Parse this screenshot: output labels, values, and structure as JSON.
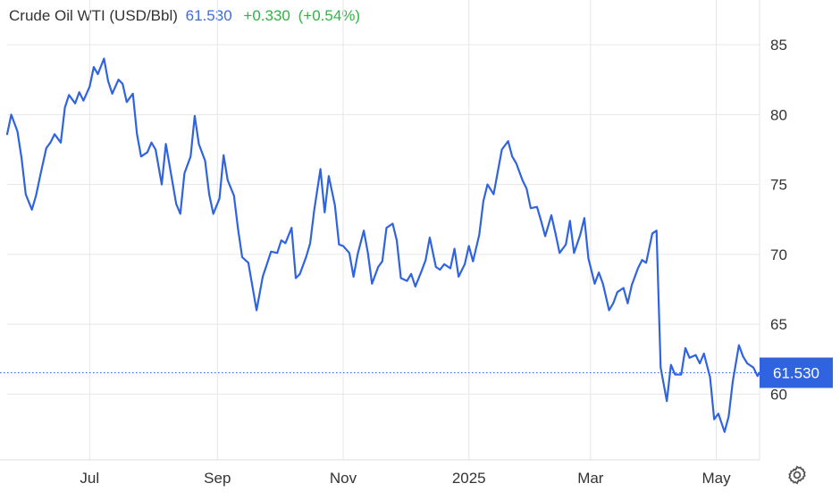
{
  "header": {
    "name": "Crude Oil WTI (USD/Bbl)",
    "price": "61.530",
    "change": "+0.330",
    "change_pct": "(+0.54%)"
  },
  "last_value_label": "61.530",
  "colors": {
    "line": "#2f63e0",
    "price_text": "#3d6be0",
    "change_positive": "#2fb344",
    "grid": "#e6e6e6",
    "axis_text": "#333333",
    "last_value_bg": "#2f63e0"
  },
  "icons": {
    "settings": "gear-icon"
  },
  "chart_data": {
    "type": "line",
    "title": "Crude Oil WTI (USD/Bbl)",
    "xlabel": "",
    "ylabel": "",
    "xlim": [
      "2025-05-13",
      "2025-05-14"
    ],
    "x_range": [
      "2024-05-22",
      "2025-05-22"
    ],
    "ylim": [
      55.3,
      88.2
    ],
    "y_ticks": [
      60,
      65,
      70,
      75,
      80,
      85
    ],
    "x_ticks": [
      {
        "label": "Jul",
        "date": "2024-07-01"
      },
      {
        "label": "Sep",
        "date": "2024-09-01"
      },
      {
        "label": "Nov",
        "date": "2024-11-01"
      },
      {
        "label": "2025",
        "date": "2025-01-01"
      },
      {
        "label": "Mar",
        "date": "2025-03-01"
      },
      {
        "label": "May",
        "date": "2025-05-01"
      }
    ],
    "grid": true,
    "y_axis_side": "right",
    "last_value": 61.53,
    "series": [
      {
        "values": [
          [
            "2024-05-22",
            78.6
          ],
          [
            "2024-05-24",
            80.0
          ],
          [
            "2024-05-27",
            78.8
          ],
          [
            "2024-05-29",
            76.9
          ],
          [
            "2024-05-31",
            74.3
          ],
          [
            "2024-06-03",
            73.2
          ],
          [
            "2024-06-05",
            74.2
          ],
          [
            "2024-06-07",
            75.6
          ],
          [
            "2024-06-10",
            77.6
          ],
          [
            "2024-06-12",
            78.0
          ],
          [
            "2024-06-14",
            78.6
          ],
          [
            "2024-06-17",
            78.0
          ],
          [
            "2024-06-19",
            80.5
          ],
          [
            "2024-06-21",
            81.4
          ],
          [
            "2024-06-24",
            80.8
          ],
          [
            "2024-06-26",
            81.6
          ],
          [
            "2024-06-28",
            81.0
          ],
          [
            "2024-07-01",
            82.0
          ],
          [
            "2024-07-03",
            83.4
          ],
          [
            "2024-07-05",
            82.9
          ],
          [
            "2024-07-08",
            84.0
          ],
          [
            "2024-07-10",
            82.4
          ],
          [
            "2024-07-12",
            81.5
          ],
          [
            "2024-07-15",
            82.5
          ],
          [
            "2024-07-17",
            82.2
          ],
          [
            "2024-07-19",
            80.9
          ],
          [
            "2024-07-22",
            81.5
          ],
          [
            "2024-07-24",
            78.6
          ],
          [
            "2024-07-26",
            77.0
          ],
          [
            "2024-07-29",
            77.3
          ],
          [
            "2024-07-31",
            78.0
          ],
          [
            "2024-08-02",
            77.5
          ],
          [
            "2024-08-05",
            75.0
          ],
          [
            "2024-08-07",
            77.9
          ],
          [
            "2024-08-09",
            76.2
          ],
          [
            "2024-08-12",
            73.6
          ],
          [
            "2024-08-14",
            72.9
          ],
          [
            "2024-08-16",
            75.8
          ],
          [
            "2024-08-19",
            77.0
          ],
          [
            "2024-08-21",
            79.9
          ],
          [
            "2024-08-23",
            77.9
          ],
          [
            "2024-08-26",
            76.7
          ],
          [
            "2024-08-28",
            74.3
          ],
          [
            "2024-08-30",
            72.9
          ],
          [
            "2024-09-02",
            74.0
          ],
          [
            "2024-09-04",
            77.1
          ],
          [
            "2024-09-06",
            75.3
          ],
          [
            "2024-09-09",
            74.2
          ],
          [
            "2024-09-11",
            71.8
          ],
          [
            "2024-09-13",
            69.8
          ],
          [
            "2024-09-16",
            69.4
          ],
          [
            "2024-09-18",
            67.7
          ],
          [
            "2024-09-20",
            66.0
          ],
          [
            "2024-09-23",
            68.4
          ],
          [
            "2024-09-25",
            69.3
          ],
          [
            "2024-09-27",
            70.2
          ],
          [
            "2024-09-30",
            70.1
          ],
          [
            "2024-10-02",
            71.0
          ],
          [
            "2024-10-04",
            70.8
          ],
          [
            "2024-10-07",
            71.9
          ],
          [
            "2024-10-09",
            68.3
          ],
          [
            "2024-10-11",
            68.6
          ],
          [
            "2024-10-14",
            69.8
          ],
          [
            "2024-10-16",
            70.8
          ],
          [
            "2024-10-18",
            73.2
          ],
          [
            "2024-10-21",
            76.1
          ],
          [
            "2024-10-23",
            73.0
          ],
          [
            "2024-10-25",
            75.6
          ],
          [
            "2024-10-28",
            73.5
          ],
          [
            "2024-10-30",
            70.7
          ],
          [
            "2024-11-01",
            70.6
          ],
          [
            "2024-11-04",
            70.1
          ],
          [
            "2024-11-06",
            68.4
          ],
          [
            "2024-11-08",
            70.0
          ],
          [
            "2024-11-11",
            71.7
          ],
          [
            "2024-11-13",
            70.1
          ],
          [
            "2024-11-15",
            67.9
          ],
          [
            "2024-11-18",
            69.1
          ],
          [
            "2024-11-20",
            69.5
          ],
          [
            "2024-11-22",
            71.9
          ],
          [
            "2024-11-25",
            72.2
          ],
          [
            "2024-11-27",
            71.0
          ],
          [
            "2024-11-29",
            68.3
          ],
          [
            "2024-12-02",
            68.1
          ],
          [
            "2024-12-04",
            68.6
          ],
          [
            "2024-12-06",
            67.7
          ],
          [
            "2024-12-09",
            68.8
          ],
          [
            "2024-12-11",
            69.6
          ],
          [
            "2024-12-13",
            71.2
          ],
          [
            "2024-12-16",
            69.1
          ],
          [
            "2024-12-18",
            68.9
          ],
          [
            "2024-12-20",
            69.3
          ],
          [
            "2024-12-23",
            69.0
          ],
          [
            "2024-12-25",
            70.4
          ],
          [
            "2024-12-27",
            68.4
          ],
          [
            "2024-12-30",
            69.3
          ],
          [
            "2025-01-01",
            70.6
          ],
          [
            "2025-01-03",
            69.5
          ],
          [
            "2025-01-06",
            71.4
          ],
          [
            "2025-01-08",
            73.8
          ],
          [
            "2025-01-10",
            75.0
          ],
          [
            "2025-01-13",
            74.3
          ],
          [
            "2025-01-15",
            75.9
          ],
          [
            "2025-01-17",
            77.5
          ],
          [
            "2025-01-20",
            78.1
          ],
          [
            "2025-01-22",
            77.0
          ],
          [
            "2025-01-24",
            76.5
          ],
          [
            "2025-01-27",
            75.3
          ],
          [
            "2025-01-29",
            74.7
          ],
          [
            "2025-01-31",
            73.3
          ],
          [
            "2025-02-03",
            73.4
          ],
          [
            "2025-02-05",
            72.4
          ],
          [
            "2025-02-07",
            71.3
          ],
          [
            "2025-02-10",
            72.8
          ],
          [
            "2025-02-12",
            71.5
          ],
          [
            "2025-02-14",
            70.1
          ],
          [
            "2025-02-17",
            70.7
          ],
          [
            "2025-02-19",
            72.4
          ],
          [
            "2025-02-21",
            70.1
          ],
          [
            "2025-02-24",
            71.4
          ],
          [
            "2025-02-26",
            72.6
          ],
          [
            "2025-02-28",
            69.7
          ],
          [
            "2025-03-03",
            67.9
          ],
          [
            "2025-03-05",
            68.7
          ],
          [
            "2025-03-07",
            67.9
          ],
          [
            "2025-03-10",
            66.0
          ],
          [
            "2025-03-12",
            66.5
          ],
          [
            "2025-03-14",
            67.3
          ],
          [
            "2025-03-17",
            67.6
          ],
          [
            "2025-03-19",
            66.5
          ],
          [
            "2025-03-21",
            67.8
          ],
          [
            "2025-03-24",
            69.0
          ],
          [
            "2025-03-26",
            69.6
          ],
          [
            "2025-03-28",
            69.4
          ],
          [
            "2025-03-31",
            71.5
          ],
          [
            "2025-04-02",
            71.7
          ],
          [
            "2025-04-04",
            61.9
          ],
          [
            "2025-04-07",
            59.5
          ],
          [
            "2025-04-09",
            62.1
          ],
          [
            "2025-04-11",
            61.4
          ],
          [
            "2025-04-14",
            61.4
          ],
          [
            "2025-04-16",
            63.3
          ],
          [
            "2025-04-18",
            62.6
          ],
          [
            "2025-04-21",
            62.8
          ],
          [
            "2025-04-23",
            62.2
          ],
          [
            "2025-04-25",
            62.9
          ],
          [
            "2025-04-28",
            61.2
          ],
          [
            "2025-04-30",
            58.2
          ],
          [
            "2025-05-02",
            58.6
          ],
          [
            "2025-05-05",
            57.3
          ],
          [
            "2025-05-07",
            58.4
          ],
          [
            "2025-05-09",
            60.9
          ],
          [
            "2025-05-12",
            63.5
          ],
          [
            "2025-05-14",
            62.7
          ],
          [
            "2025-05-16",
            62.2
          ],
          [
            "2025-05-19",
            61.9
          ],
          [
            "2025-05-21",
            61.3
          ],
          [
            "2025-05-22",
            61.53
          ]
        ]
      }
    ]
  }
}
